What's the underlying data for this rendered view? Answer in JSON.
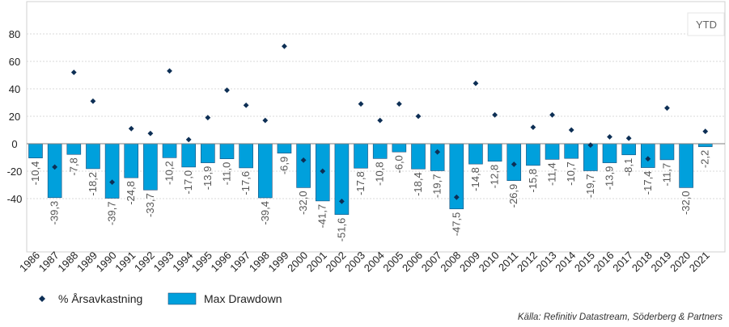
{
  "chart_data": {
    "type": "bar",
    "title": "",
    "xlabel": "",
    "ylabel": "",
    "ylim": [
      -60,
      90
    ],
    "yticks": [
      -40,
      -20,
      0,
      20,
      40,
      60,
      80
    ],
    "annotation": "YTD",
    "grid": true,
    "legend_position": "bottom-left",
    "categories": [
      "1986",
      "1987",
      "1988",
      "1989",
      "1990",
      "1991",
      "1992",
      "1993",
      "1994",
      "1995",
      "1996",
      "1997",
      "1998",
      "1999",
      "2000",
      "2001",
      "2002",
      "2003",
      "2004",
      "2005",
      "2006",
      "2007",
      "2008",
      "2009",
      "2010",
      "2011",
      "2012",
      "2013",
      "2014",
      "2015",
      "2016",
      "2017",
      "2018",
      "2019",
      "2020",
      "2021"
    ],
    "series": [
      {
        "name": "Max Drawdown",
        "kind": "bar",
        "color": "#00a0dc",
        "values": [
          -10.4,
          -39.3,
          -7.8,
          -18.2,
          -39.7,
          -24.8,
          -33.7,
          -10.2,
          -17.0,
          -13.9,
          -11.0,
          -17.6,
          -39.4,
          -6.9,
          -32.0,
          -41.7,
          -51.6,
          -17.8,
          -10.8,
          -6.0,
          -18.4,
          -19.7,
          -47.5,
          -14.8,
          -12.8,
          -26.9,
          -15.8,
          -11.4,
          -10.7,
          -19.7,
          -13.9,
          -8.1,
          -17.4,
          -11.7,
          -32.0,
          -2.2
        ],
        "labels": [
          "-10,4",
          "-39,3",
          "-7,8",
          "-18,2",
          "-39,7",
          "-24,8",
          "-33,7",
          "-10,2",
          "-17,0",
          "-13,9",
          "-11,0",
          "-17,6",
          "-39,4",
          "-6,9",
          "-32,0",
          "-41,7",
          "-51,6",
          "-17,8",
          "-10,8",
          "-6,0",
          "-18,4",
          "-19,7",
          "-47,5",
          "-14,8",
          "-12,8",
          "-26,9",
          "-15,8",
          "-11,4",
          "-10,7",
          "-19,7",
          "-13,9",
          "-8,1",
          "-17,4",
          "-11,7",
          "-32,0",
          "-2,2"
        ]
      },
      {
        "name": "% Årsavkastning",
        "kind": "scatter",
        "color": "#0d2f55",
        "values": [
          null,
          -17,
          52,
          31,
          -28,
          11,
          7.5,
          53,
          3,
          19,
          39,
          28,
          17,
          71,
          -12,
          -20,
          -42,
          29,
          17,
          29,
          20,
          -6,
          -39,
          44,
          21,
          -15,
          12,
          21,
          10,
          -1,
          5,
          4,
          -11,
          26,
          null,
          9
        ]
      }
    ],
    "source": "Källa: Refinitiv Datastream, Söderberg & Partners"
  }
}
